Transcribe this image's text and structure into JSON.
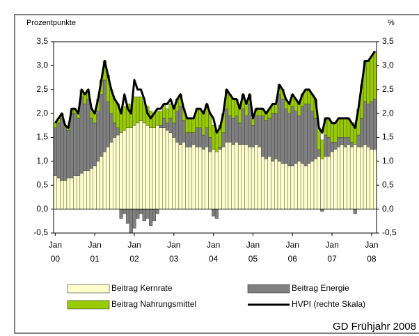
{
  "chart_data": {
    "type": "bar",
    "stacked": true,
    "ylabel": "Prozentpunkte",
    "y2label": "%",
    "source": "GD Frühjahr 2008",
    "categories": [
      "Jan 00",
      null,
      null,
      null,
      null,
      null,
      null,
      null,
      null,
      null,
      null,
      null,
      "Jan 01",
      null,
      null,
      null,
      null,
      null,
      null,
      null,
      null,
      null,
      null,
      null,
      "Jan 02",
      null,
      null,
      null,
      null,
      null,
      null,
      null,
      null,
      null,
      null,
      null,
      "Jan 03",
      null,
      null,
      null,
      null,
      null,
      null,
      null,
      null,
      null,
      null,
      null,
      "Jan 04",
      null,
      null,
      null,
      null,
      null,
      null,
      null,
      null,
      null,
      null,
      null,
      "Jan 05",
      null,
      null,
      null,
      null,
      null,
      null,
      null,
      null,
      null,
      null,
      null,
      "Jan 06",
      null,
      null,
      null,
      null,
      null,
      null,
      null,
      null,
      null,
      null,
      null,
      "Jan 07",
      null,
      null,
      null,
      null,
      null,
      null,
      null,
      null,
      null,
      null,
      null,
      "Jan 08",
      null
    ],
    "series": [
      {
        "name": "Beitrag Kernrate",
        "color": "#ffffcc",
        "values": [
          0.7,
          0.65,
          0.6,
          0.6,
          0.65,
          0.65,
          0.7,
          0.7,
          0.75,
          0.8,
          0.8,
          0.85,
          0.9,
          1.0,
          1.1,
          1.2,
          1.3,
          1.4,
          1.5,
          1.55,
          1.6,
          1.65,
          1.7,
          1.7,
          1.75,
          1.8,
          1.85,
          1.8,
          1.75,
          1.7,
          1.7,
          1.75,
          1.7,
          1.7,
          1.65,
          1.6,
          1.5,
          1.4,
          1.35,
          1.4,
          1.3,
          1.3,
          1.35,
          1.3,
          1.3,
          1.25,
          1.3,
          1.2,
          1.25,
          1.2,
          1.25,
          1.3,
          1.4,
          1.4,
          1.35,
          1.4,
          1.35,
          1.35,
          1.35,
          1.3,
          1.3,
          1.35,
          1.3,
          1.1,
          1.05,
          1.1,
          1.0,
          1.05,
          1.0,
          0.95,
          0.95,
          0.9,
          0.9,
          0.95,
          1.0,
          0.95,
          0.9,
          0.95,
          1.0,
          1.05,
          1.1,
          1.05,
          1.1,
          1.1,
          1.2,
          1.25,
          1.3,
          1.35,
          1.3,
          1.35,
          1.3,
          1.35,
          1.3,
          1.3,
          1.35,
          1.3,
          1.25,
          1.25
        ]
      },
      {
        "name": "Beitrag Energie",
        "color": "#808080",
        "values": [
          1.0,
          1.15,
          1.3,
          1.1,
          1.0,
          1.35,
          1.3,
          1.2,
          1.6,
          1.4,
          1.5,
          1.05,
          0.9,
          1.05,
          1.3,
          1.5,
          0.95,
          0.6,
          0.3,
          0.15,
          -0.2,
          -0.1,
          -0.3,
          -0.5,
          -0.4,
          -0.2,
          -0.1,
          -0.25,
          -0.2,
          -0.35,
          -0.25,
          -0.1,
          0.05,
          0.2,
          0.15,
          0.3,
          0.3,
          0.65,
          0.8,
          0.45,
          0.3,
          0.3,
          0.25,
          0.4,
          0.4,
          0.3,
          0.4,
          0.3,
          -0.15,
          -0.2,
          0.05,
          0.3,
          0.7,
          0.55,
          0.55,
          0.55,
          0.45,
          0.75,
          0.6,
          0.9,
          0.45,
          0.6,
          0.65,
          0.85,
          0.8,
          0.8,
          1.0,
          0.95,
          1.4,
          1.35,
          1.15,
          1.1,
          1.25,
          1.1,
          0.95,
          1.2,
          1.3,
          1.25,
          1.05,
          0.85,
          0.15,
          -0.05,
          0.45,
          0.4,
          0.2,
          0.15,
          0.2,
          0.15,
          0.2,
          0.15,
          0.1,
          -0.1,
          0.25,
          0.6,
          0.9,
          0.9,
          1.0,
          1.05
        ]
      },
      {
        "name": "Beitrag Nahrungsmittel",
        "color": "#99cc00",
        "values": [
          0.1,
          0.1,
          0.1,
          0.05,
          0.05,
          0.1,
          0.1,
          0.1,
          0.15,
          0.2,
          0.2,
          0.2,
          0.2,
          0.25,
          0.3,
          0.4,
          0.55,
          0.5,
          0.5,
          0.5,
          0.45,
          0.5,
          0.5,
          0.5,
          0.6,
          0.55,
          0.5,
          0.45,
          0.4,
          0.35,
          0.3,
          0.3,
          0.3,
          0.3,
          0.3,
          0.3,
          0.3,
          0.25,
          0.25,
          0.25,
          0.3,
          0.3,
          0.3,
          0.4,
          0.4,
          0.45,
          0.5,
          0.5,
          0.5,
          0.45,
          0.45,
          0.4,
          0.4,
          0.45,
          0.4,
          0.35,
          0.3,
          0.3,
          0.25,
          0.2,
          0.15,
          0.15,
          0.15,
          0.15,
          0.15,
          0.2,
          0.2,
          0.2,
          0.2,
          0.2,
          0.2,
          0.2,
          0.25,
          0.25,
          0.25,
          0.25,
          0.3,
          0.3,
          0.35,
          0.4,
          0.45,
          0.4,
          0.35,
          0.4,
          0.4,
          0.4,
          0.4,
          0.4,
          0.4,
          0.4,
          0.4,
          0.45,
          0.55,
          0.7,
          0.85,
          0.9,
          0.95,
          1.0
        ]
      },
      {
        "name": "HVPI (rechte Skala)",
        "type": "line",
        "axis": "y2",
        "color": "#000000",
        "values": [
          1.8,
          1.9,
          2.0,
          1.75,
          1.7,
          2.1,
          2.1,
          2.0,
          2.5,
          2.4,
          2.5,
          2.1,
          2.0,
          2.3,
          2.7,
          3.1,
          2.8,
          2.5,
          2.3,
          2.2,
          2.0,
          2.4,
          2.1,
          2.0,
          2.7,
          2.5,
          2.5,
          2.3,
          2.0,
          1.9,
          2.0,
          2.1,
          2.1,
          2.2,
          2.2,
          2.3,
          2.1,
          2.3,
          2.4,
          2.1,
          1.9,
          1.9,
          1.9,
          2.1,
          2.1,
          2.0,
          2.2,
          2.0,
          1.9,
          1.6,
          1.7,
          2.0,
          2.5,
          2.4,
          2.3,
          2.3,
          2.1,
          2.4,
          2.2,
          2.4,
          1.9,
          2.1,
          2.1,
          2.1,
          2.0,
          2.1,
          2.2,
          2.2,
          2.6,
          2.5,
          2.3,
          2.2,
          2.4,
          2.3,
          2.2,
          2.4,
          2.5,
          2.5,
          2.4,
          2.3,
          1.7,
          1.6,
          1.9,
          1.9,
          1.8,
          1.8,
          1.9,
          1.9,
          1.9,
          1.9,
          1.8,
          1.7,
          2.1,
          2.6,
          3.1,
          3.1,
          3.2,
          3.3
        ]
      }
    ],
    "ylim": [
      -0.5,
      3.5
    ],
    "yticks": [
      {
        "value": -0.5,
        "label": "-0,5"
      },
      {
        "value": 0,
        "label": "0,0"
      },
      {
        "value": 0.5,
        "label": "0,5"
      },
      {
        "value": 1,
        "label": "1,0"
      },
      {
        "value": 1.5,
        "label": "1,5"
      },
      {
        "value": 2,
        "label": "2,0"
      },
      {
        "value": 2.5,
        "label": "2,5"
      },
      {
        "value": 3,
        "label": "3,0"
      },
      {
        "value": 3.5,
        "label": "3,5"
      }
    ],
    "y2lim": [
      -0.5,
      3.5
    ],
    "y2ticks": [
      {
        "value": -0.5,
        "label": "-0,5"
      },
      {
        "value": 0,
        "label": "0,0"
      },
      {
        "value": 0.5,
        "label": "0,5"
      },
      {
        "value": 1,
        "label": "1,0"
      },
      {
        "value": 1.5,
        "label": "1,5"
      },
      {
        "value": 2,
        "label": "2,0"
      },
      {
        "value": 2.5,
        "label": "2,5"
      },
      {
        "value": 3,
        "label": "3,0"
      },
      {
        "value": 3.5,
        "label": "3,5"
      }
    ],
    "grid": false
  }
}
